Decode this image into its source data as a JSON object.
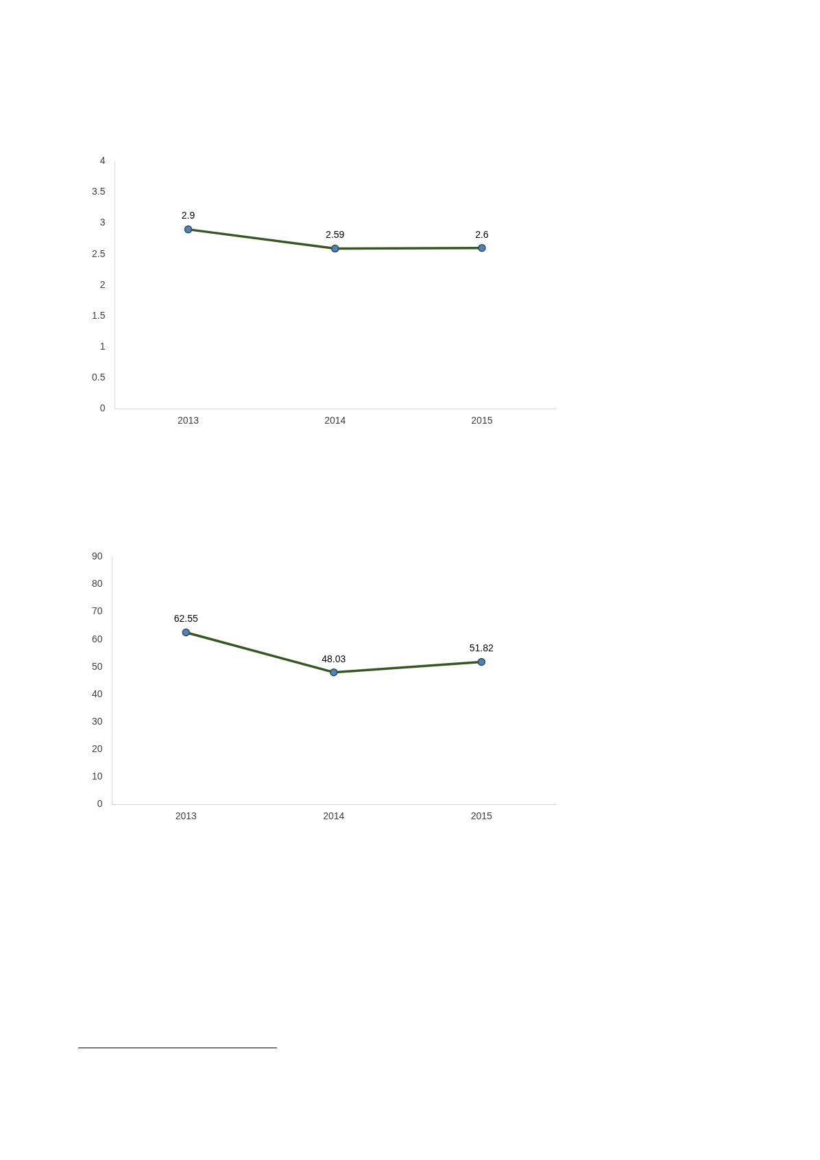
{
  "chart_data": [
    {
      "type": "line",
      "categories": [
        "2013",
        "2014",
        "2015"
      ],
      "series": [
        {
          "color": "#375623",
          "values": [
            2.9,
            2.59,
            2.6
          ]
        }
      ],
      "ylim": [
        0,
        4
      ],
      "yticks": [
        0,
        0.5,
        1,
        1.5,
        2,
        2.5,
        3,
        3.5,
        4
      ],
      "grid": false,
      "legend": false,
      "marker": "circle",
      "data_labels": true
    },
    {
      "type": "line",
      "categories": [
        "2013",
        "2014",
        "2015"
      ],
      "series": [
        {
          "color": "#375623",
          "values": [
            62.55,
            48.03,
            51.82
          ]
        }
      ],
      "ylim": [
        0,
        90
      ],
      "yticks": [
        0,
        10,
        20,
        30,
        40,
        50,
        60,
        70,
        80,
        90
      ],
      "grid": false,
      "legend": false,
      "marker": "circle",
      "data_labels": true
    }
  ]
}
